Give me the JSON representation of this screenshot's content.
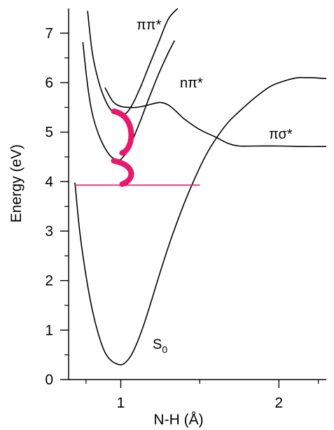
{
  "chart_data": {
    "type": "line",
    "title": "",
    "xlabel": "N-H (Å)",
    "ylabel": "Energy (eV)",
    "xlim": [
      0.67,
      2.3
    ],
    "ylim": [
      0,
      7.5
    ],
    "x_ticks": [
      {
        "value": 1,
        "label": "1"
      },
      {
        "value": 2,
        "label": "2"
      }
    ],
    "y_ticks": [
      {
        "value": 0,
        "label": "0"
      },
      {
        "value": 1,
        "label": "1"
      },
      {
        "value": 2,
        "label": "2"
      },
      {
        "value": 3,
        "label": "3"
      },
      {
        "value": 4,
        "label": "4"
      },
      {
        "value": 5,
        "label": "5"
      },
      {
        "value": 6,
        "label": "6"
      },
      {
        "value": 7,
        "label": "7"
      }
    ],
    "grid": false,
    "legend": "none",
    "arrow_color": "#e8196b",
    "series": [
      {
        "label_text": "S",
        "label_sub": "0",
        "x": [
          0.71,
          0.74,
          0.78,
          0.82,
          0.86,
          0.9,
          0.94,
          0.98,
          1.0,
          1.02,
          1.06,
          1.1,
          1.15,
          1.2,
          1.26,
          1.32,
          1.4,
          1.48,
          1.55,
          1.62,
          1.68,
          1.75,
          1.85,
          1.95,
          2.05,
          2.12,
          2.18,
          2.22,
          2.3
        ],
        "y": [
          3.98,
          3.0,
          2.1,
          1.4,
          0.9,
          0.55,
          0.38,
          0.31,
          0.3,
          0.32,
          0.46,
          0.72,
          1.15,
          1.66,
          2.28,
          2.86,
          3.55,
          4.15,
          4.6,
          4.95,
          5.2,
          5.42,
          5.7,
          5.93,
          6.05,
          6.1,
          6.1,
          6.1,
          6.08
        ]
      },
      {
        "label_text": "πσ*",
        "x": [
          0.9,
          0.95,
          1.0,
          1.05,
          1.1,
          1.15,
          1.2,
          1.25,
          1.3,
          1.35,
          1.4,
          1.5,
          1.6,
          1.68,
          1.75,
          1.85,
          2.0,
          2.15,
          2.3
        ],
        "y": [
          5.9,
          5.62,
          5.52,
          5.5,
          5.5,
          5.53,
          5.57,
          5.6,
          5.55,
          5.42,
          5.27,
          5.05,
          4.9,
          4.77,
          4.72,
          4.72,
          4.72,
          4.71,
          4.71
        ]
      },
      {
        "label_text": "ππ*",
        "x": [
          0.79,
          0.82,
          0.86,
          0.9,
          0.94,
          0.98,
          1.0,
          1.04,
          1.08,
          1.13,
          1.18,
          1.24,
          1.3,
          1.36
        ],
        "y": [
          7.45,
          6.6,
          6.02,
          5.66,
          5.44,
          5.35,
          5.34,
          5.4,
          5.6,
          5.95,
          6.35,
          6.82,
          7.28,
          7.5
        ]
      },
      {
        "label_text": "nπ*",
        "x": [
          0.76,
          0.79,
          0.82,
          0.86,
          0.9,
          0.94,
          0.98,
          1.0,
          1.02,
          1.05,
          1.08,
          1.13,
          1.18,
          1.24,
          1.3,
          1.34
        ],
        "y": [
          6.82,
          5.95,
          5.37,
          4.95,
          4.68,
          4.5,
          4.44,
          4.45,
          4.52,
          4.66,
          4.88,
          5.28,
          5.7,
          6.18,
          6.6,
          6.85
        ]
      }
    ],
    "reference_line": {
      "x": [
        0.71,
        1.5
      ],
      "y": 3.93
    }
  }
}
